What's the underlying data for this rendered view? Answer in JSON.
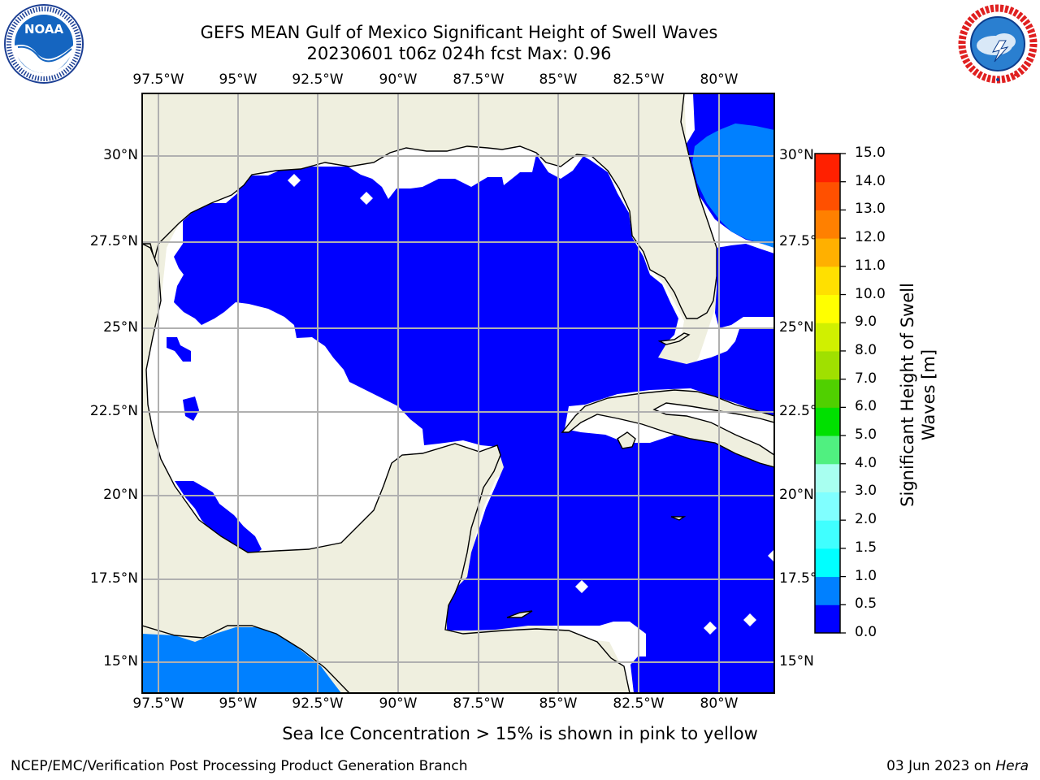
{
  "header": {
    "title_line1": "GEFS MEAN Gulf of Mexico Significant Height of Swell Waves",
    "title_line2": "20230601 t06z 024h fcst   Max: 0.96"
  },
  "logos": {
    "left": {
      "name": "noaa-logo",
      "text": "NOAA",
      "ring_text": "NATIONAL OCEANIC AND ATMOSPHERIC ADMINISTRATION · U.S. DEPARTMENT OF COMMERCE"
    },
    "right": {
      "name": "nws-logo",
      "ring_text": "NATIONAL WEATHER SERVICE"
    }
  },
  "map": {
    "lon_labels": [
      "97.5°W",
      "95°W",
      "92.5°W",
      "90°W",
      "87.5°W",
      "85°W",
      "82.5°W",
      "80°W"
    ],
    "lat_labels_left": [
      "30°N",
      "27.5°N",
      "25°N",
      "22.5°N",
      "20°N",
      "17.5°N",
      "15°N"
    ],
    "lat_labels_right": [
      "30°N",
      "27.5°N",
      "25°N",
      "22.5°N",
      "20°N",
      "17.5°N",
      "15°N"
    ],
    "colors": {
      "land": "#efefdf",
      "swell_0_05": "#0000ff",
      "swell_05_10": "#0080ff",
      "grid": "#b0b0b0"
    }
  },
  "colorbar": {
    "label_line1": "Significant Height of Swell",
    "label_line2": "Waves [m]",
    "ticks": [
      "0.0",
      "0.5",
      "1.0",
      "1.5",
      "2.0",
      "3.0",
      "4.0",
      "5.0",
      "6.0",
      "7.0",
      "8.0",
      "9.0",
      "10.0",
      "11.0",
      "12.0",
      "13.0",
      "14.0",
      "15.0"
    ],
    "colors": [
      "#0000ff",
      "#0080ff",
      "#00ffff",
      "#40ffff",
      "#80ffff",
      "#a8fff0",
      "#50f080",
      "#00e000",
      "#50d000",
      "#a0e000",
      "#d0f000",
      "#ffff00",
      "#ffe000",
      "#ffb000",
      "#ff8000",
      "#ff5000",
      "#ff2000",
      "#ff0000"
    ]
  },
  "footer": {
    "note": "Sea Ice Concentration > 15% is shown in pink to yellow",
    "left": "NCEP/EMC/Verification Post Processing Product Generation Branch",
    "right_prefix": "03 Jun 2023 on ",
    "right_host": "Hera"
  }
}
